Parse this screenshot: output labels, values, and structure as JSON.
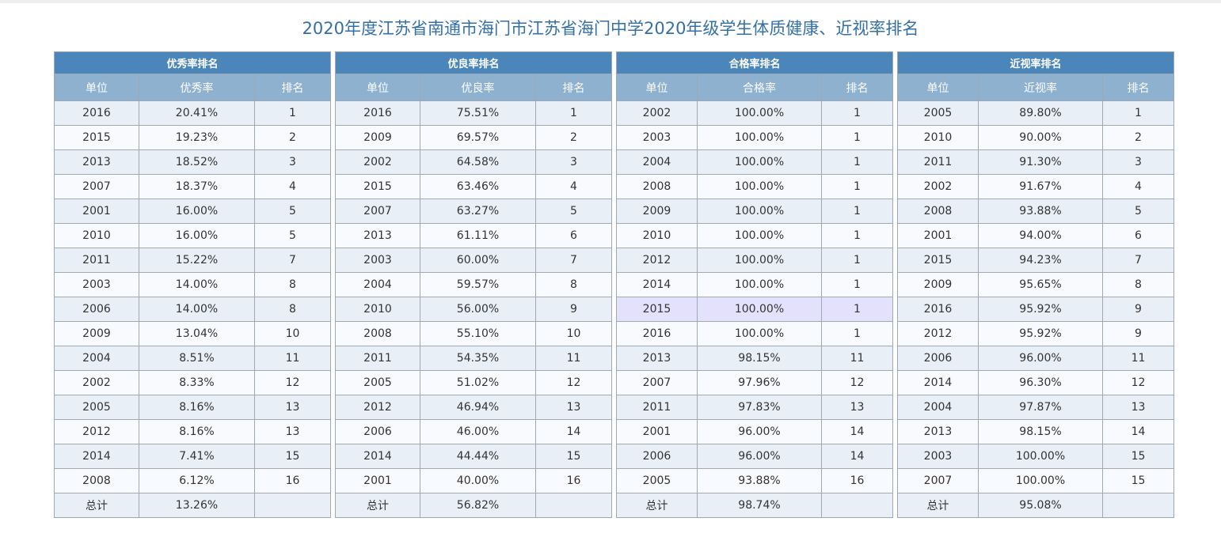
{
  "title": "2020年度江苏省南通市海门市江苏省海门中学2020年级学生体质健康、近视率排名",
  "total_label": "总计",
  "highlight": {
    "table": 2,
    "row": 8
  },
  "tables": [
    {
      "name": "优秀率排名",
      "columns": [
        "单位",
        "优秀率",
        "排名"
      ],
      "rows": [
        [
          "2016",
          "20.41%",
          "1"
        ],
        [
          "2015",
          "19.23%",
          "2"
        ],
        [
          "2013",
          "18.52%",
          "3"
        ],
        [
          "2007",
          "18.37%",
          "4"
        ],
        [
          "2001",
          "16.00%",
          "5"
        ],
        [
          "2010",
          "16.00%",
          "5"
        ],
        [
          "2011",
          "15.22%",
          "7"
        ],
        [
          "2003",
          "14.00%",
          "8"
        ],
        [
          "2006",
          "14.00%",
          "8"
        ],
        [
          "2009",
          "13.04%",
          "10"
        ],
        [
          "2004",
          "8.51%",
          "11"
        ],
        [
          "2002",
          "8.33%",
          "12"
        ],
        [
          "2005",
          "8.16%",
          "13"
        ],
        [
          "2012",
          "8.16%",
          "13"
        ],
        [
          "2014",
          "7.41%",
          "15"
        ],
        [
          "2008",
          "6.12%",
          "16"
        ]
      ],
      "total": "13.26%"
    },
    {
      "name": "优良率排名",
      "columns": [
        "单位",
        "优良率",
        "排名"
      ],
      "rows": [
        [
          "2016",
          "75.51%",
          "1"
        ],
        [
          "2009",
          "69.57%",
          "2"
        ],
        [
          "2002",
          "64.58%",
          "3"
        ],
        [
          "2015",
          "63.46%",
          "4"
        ],
        [
          "2007",
          "63.27%",
          "5"
        ],
        [
          "2013",
          "61.11%",
          "6"
        ],
        [
          "2003",
          "60.00%",
          "7"
        ],
        [
          "2004",
          "59.57%",
          "8"
        ],
        [
          "2010",
          "56.00%",
          "9"
        ],
        [
          "2008",
          "55.10%",
          "10"
        ],
        [
          "2011",
          "54.35%",
          "11"
        ],
        [
          "2005",
          "51.02%",
          "12"
        ],
        [
          "2012",
          "46.94%",
          "13"
        ],
        [
          "2006",
          "46.00%",
          "14"
        ],
        [
          "2014",
          "44.44%",
          "15"
        ],
        [
          "2001",
          "40.00%",
          "16"
        ]
      ],
      "total": "56.82%"
    },
    {
      "name": "合格率排名",
      "columns": [
        "单位",
        "合格率",
        "排名"
      ],
      "rows": [
        [
          "2002",
          "100.00%",
          "1"
        ],
        [
          "2003",
          "100.00%",
          "1"
        ],
        [
          "2004",
          "100.00%",
          "1"
        ],
        [
          "2008",
          "100.00%",
          "1"
        ],
        [
          "2009",
          "100.00%",
          "1"
        ],
        [
          "2010",
          "100.00%",
          "1"
        ],
        [
          "2012",
          "100.00%",
          "1"
        ],
        [
          "2014",
          "100.00%",
          "1"
        ],
        [
          "2015",
          "100.00%",
          "1"
        ],
        [
          "2016",
          "100.00%",
          "1"
        ],
        [
          "2013",
          "98.15%",
          "11"
        ],
        [
          "2007",
          "97.96%",
          "12"
        ],
        [
          "2011",
          "97.83%",
          "13"
        ],
        [
          "2001",
          "96.00%",
          "14"
        ],
        [
          "2006",
          "96.00%",
          "14"
        ],
        [
          "2005",
          "93.88%",
          "16"
        ]
      ],
      "total": "98.74%"
    },
    {
      "name": "近视率排名",
      "columns": [
        "单位",
        "近视率",
        "排名"
      ],
      "rows": [
        [
          "2005",
          "89.80%",
          "1"
        ],
        [
          "2010",
          "90.00%",
          "2"
        ],
        [
          "2011",
          "91.30%",
          "3"
        ],
        [
          "2002",
          "91.67%",
          "4"
        ],
        [
          "2008",
          "93.88%",
          "5"
        ],
        [
          "2001",
          "94.00%",
          "6"
        ],
        [
          "2015",
          "94.23%",
          "7"
        ],
        [
          "2009",
          "95.65%",
          "8"
        ],
        [
          "2016",
          "95.92%",
          "9"
        ],
        [
          "2012",
          "95.92%",
          "9"
        ],
        [
          "2006",
          "96.00%",
          "11"
        ],
        [
          "2014",
          "96.30%",
          "12"
        ],
        [
          "2004",
          "97.87%",
          "13"
        ],
        [
          "2013",
          "98.15%",
          "14"
        ],
        [
          "2003",
          "100.00%",
          "15"
        ],
        [
          "2007",
          "100.00%",
          "15"
        ]
      ],
      "total": "95.08%"
    }
  ]
}
